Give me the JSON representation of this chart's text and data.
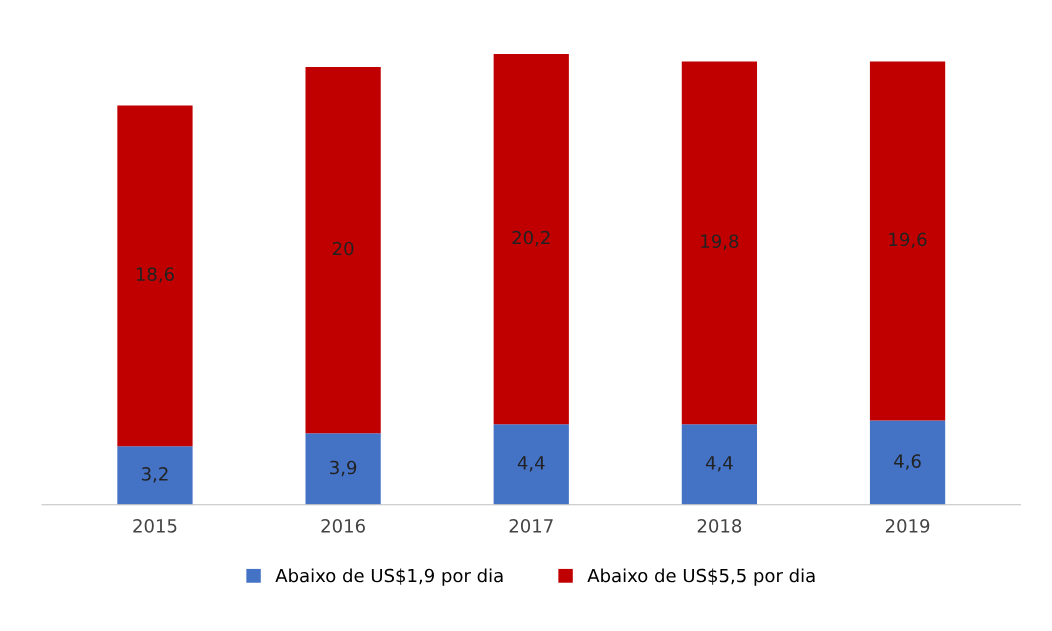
{
  "chart_data": {
    "type": "bar",
    "stacked": true,
    "legend": "bottom",
    "categories": [
      "2015",
      "2016",
      "2017",
      "2018",
      "2019"
    ],
    "series": [
      {
        "name": "Abaixo de US$1,9 por dia",
        "color": "#4472c4",
        "values": [
          3.2,
          3.9,
          4.4,
          4.4,
          4.6
        ],
        "value_labels": [
          "3,2",
          "3,9",
          "4,4",
          "4,4",
          "4,6"
        ]
      },
      {
        "name": "Abaixo de US$5,5 por dia",
        "color": "#c00000",
        "values": [
          18.6,
          20,
          20.2,
          19.8,
          19.6
        ],
        "value_labels": [
          "18,6",
          "20",
          "20,2",
          "19,8",
          "19,6"
        ]
      }
    ]
  }
}
